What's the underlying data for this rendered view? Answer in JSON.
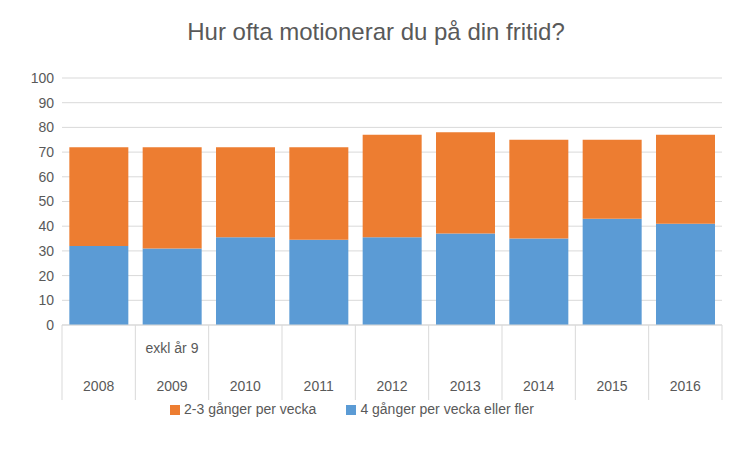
{
  "chart_data": {
    "type": "bar",
    "title": "Hur ofta motionerar du på din fritid?",
    "categories": [
      "2008",
      "2009",
      "2010",
      "2011",
      "2012",
      "2013",
      "2014",
      "2015",
      "2016"
    ],
    "series": [
      {
        "name": "4 gånger per vecka eller fler",
        "color": "#5b9bd5",
        "values": [
          32,
          31,
          35.5,
          34.5,
          35.5,
          37,
          35,
          43,
          41
        ]
      },
      {
        "name": "2-3 gånger per vecka",
        "color": "#ed7d31",
        "values": [
          40,
          41,
          36.5,
          37.5,
          41.5,
          41,
          40,
          32,
          36
        ]
      }
    ],
    "annotation": {
      "category": "2009",
      "text": "exkl år 9"
    },
    "ylim": [
      0,
      100
    ],
    "yticks": [
      0,
      10,
      20,
      30,
      40,
      50,
      60,
      70,
      80,
      90,
      100
    ],
    "stacked": true,
    "grid": true,
    "legend": "bottom"
  }
}
